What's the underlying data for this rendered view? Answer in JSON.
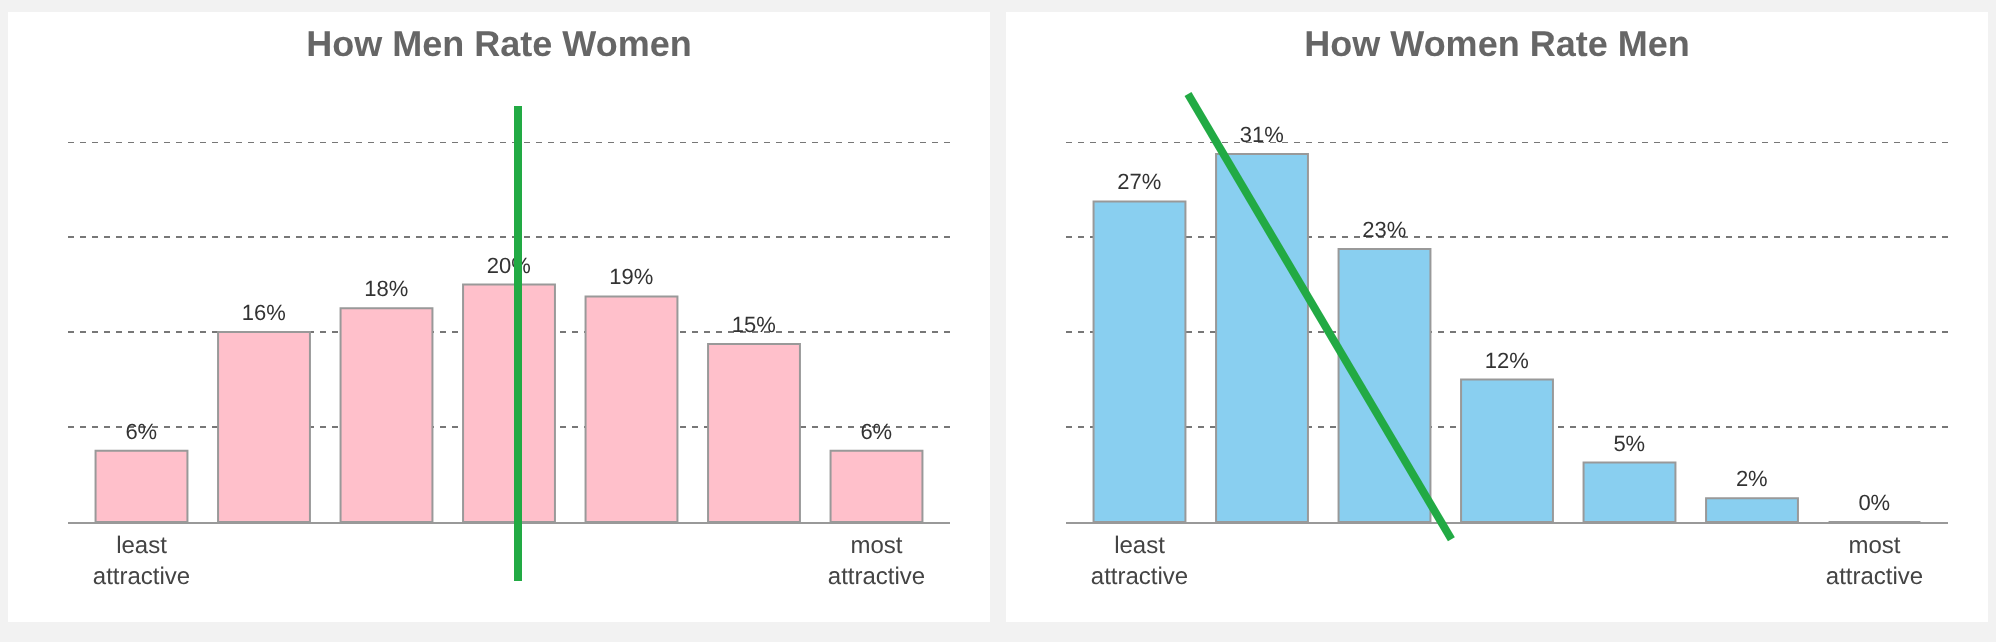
{
  "chart_data": [
    {
      "type": "bar",
      "title": "How Men Rate Women",
      "categories": [
        "least attractive",
        null,
        null,
        null,
        null,
        null,
        "most attractive"
      ],
      "series": [
        {
          "color": "#ffc0cb",
          "values": [
            6,
            16,
            18,
            20,
            19,
            15,
            6
          ],
          "value_labels": [
            "6%",
            "16%",
            "18%",
            "20%",
            "19%",
            "15%",
            "6%"
          ]
        }
      ],
      "ylim": [
        0,
        32
      ],
      "yticks": [
        {
          "value": 8,
          "label": null
        },
        {
          "value": 16,
          "label": null
        },
        {
          "value": 24,
          "label": null
        },
        {
          "value": 32,
          "label": null
        }
      ],
      "grid": "y",
      "tick_labels": "x"
    },
    {
      "type": "bar",
      "title": "How Women Rate Men",
      "categories": [
        "least attractive",
        null,
        null,
        null,
        null,
        null,
        "most attractive"
      ],
      "series": [
        {
          "color": "#89cff0",
          "values": [
            27,
            31,
            23,
            12,
            5,
            2,
            0
          ],
          "value_labels": [
            "27%",
            "31%",
            "23%",
            "12%",
            "5%",
            "2%",
            "0%"
          ]
        }
      ],
      "ylim": [
        0,
        32
      ],
      "yticks": [
        {
          "value": 8,
          "label": null
        },
        {
          "value": 16,
          "label": null
        },
        {
          "value": 24,
          "label": null
        },
        {
          "value": 32,
          "label": null
        }
      ],
      "grid": "y",
      "tick_labels": "x"
    }
  ]
}
